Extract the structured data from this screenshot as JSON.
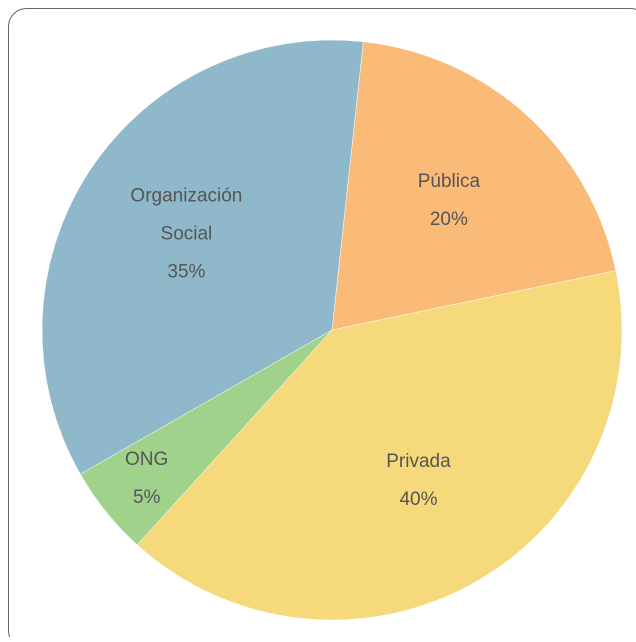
{
  "chart_data": {
    "type": "pie",
    "categories": [
      "Pública",
      "Privada",
      "ONG",
      "Organización Social"
    ],
    "values": [
      20,
      40,
      5,
      35
    ],
    "value_labels": [
      "20%",
      "40%",
      "5%",
      "35%"
    ],
    "colors": [
      "#fbbb78",
      "#f5d97a",
      "#a1d28b",
      "#8fb8ca"
    ]
  }
}
